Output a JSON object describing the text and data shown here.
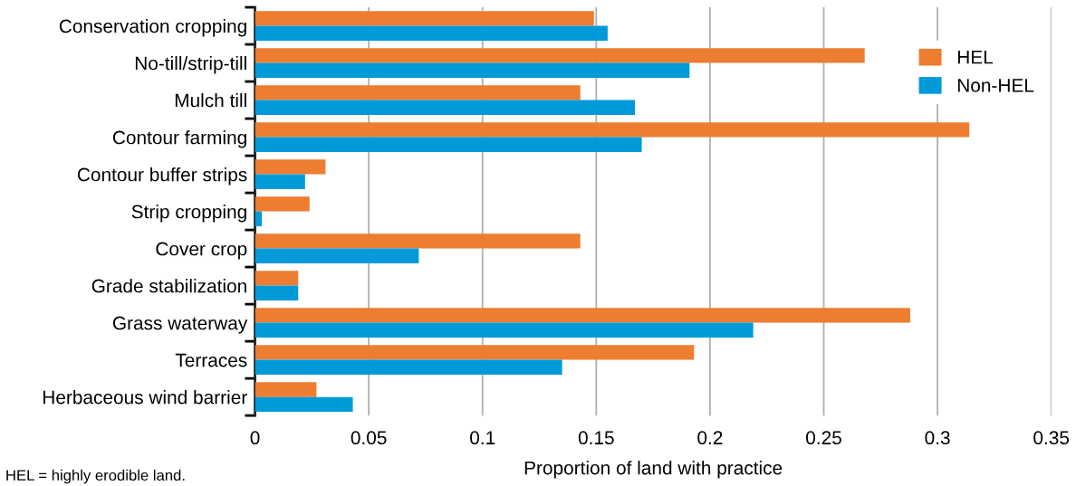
{
  "chart_data": {
    "type": "bar",
    "orientation": "horizontal",
    "categories": [
      "Conservation cropping",
      "No-till/strip-till",
      "Mulch till",
      "Contour farming",
      "Contour buffer strips",
      "Strip cropping",
      "Cover crop",
      "Grade stabilization",
      "Grass waterway",
      "Terraces",
      "Herbaceous wind barrier"
    ],
    "series": [
      {
        "name": "HEL",
        "color": "#ed7d31",
        "values": [
          0.149,
          0.268,
          0.143,
          0.314,
          0.031,
          0.024,
          0.143,
          0.019,
          0.288,
          0.193,
          0.027
        ]
      },
      {
        "name": "Non-HEL",
        "color": "#009ada",
        "values": [
          0.155,
          0.191,
          0.167,
          0.17,
          0.022,
          0.003,
          0.072,
          0.019,
          0.219,
          0.135,
          0.043
        ]
      }
    ],
    "xlabel": "Proportion of land with practice",
    "xlim": [
      0,
      0.35
    ],
    "xticks": [
      0,
      0.05,
      0.1,
      0.15,
      0.2,
      0.25,
      0.3,
      0.35
    ],
    "grid": "x",
    "legend": "top right",
    "annotations": [
      "HEL = highly erodible land."
    ]
  }
}
